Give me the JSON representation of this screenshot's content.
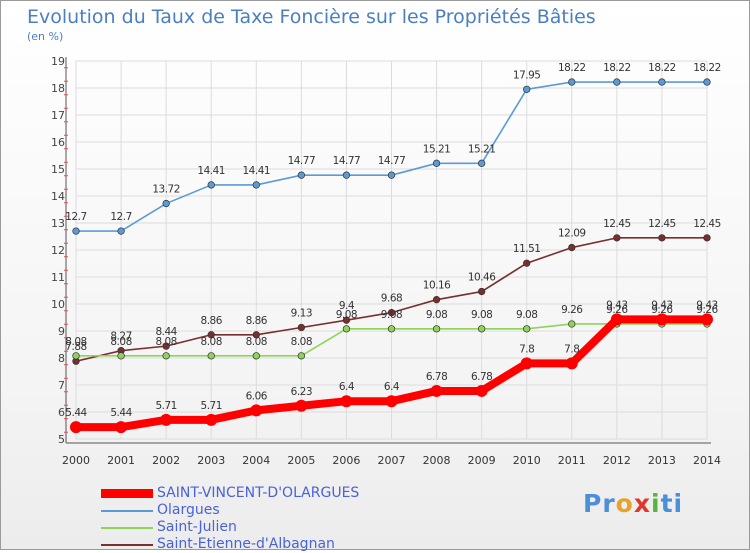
{
  "title": "Evolution du Taux de Taxe Foncière sur les Propriétés Bâties",
  "subtitle": "(en %)",
  "logo": {
    "parts": [
      "Pr",
      "o",
      "x",
      "i",
      "ti"
    ],
    "colors": [
      "#4a8fd8",
      "#e8a22a",
      "#e0362b",
      "#58b43e",
      "#4a8fd8"
    ]
  },
  "chart_data": {
    "type": "line",
    "title": "Evolution du Taux de Taxe Foncière sur les Propriétés Bâties",
    "ylabel": "(en %)",
    "x": [
      "2000",
      "2001",
      "2002",
      "2003",
      "2004",
      "2005",
      "2006",
      "2007",
      "2008",
      "2009",
      "2010",
      "2011",
      "2012",
      "2013",
      "2014"
    ],
    "ylim": [
      5,
      19
    ],
    "yticks": [
      "5",
      "6",
      "7",
      "8",
      "9",
      "10",
      "11",
      "12",
      "13",
      "14",
      "15",
      "16",
      "17",
      "18",
      "19"
    ],
    "grid": true,
    "legend_position": "bottom-left",
    "series": [
      {
        "name": "SAINT-VINCENT-D'OLARGUES",
        "color": "#ff0000",
        "values": [
          5.44,
          5.44,
          5.71,
          5.71,
          6.06,
          6.23,
          6.4,
          6.4,
          6.78,
          6.78,
          7.8,
          7.8,
          9.43,
          9.43,
          9.43
        ],
        "labels": [
          "5.44",
          "5.44",
          "5.71",
          "5.71",
          "6.06",
          "6.23",
          "6.4",
          "6.4",
          "6.78",
          "6.78",
          "7.8",
          "7.8",
          "9.43",
          "9.43",
          "9.43"
        ]
      },
      {
        "name": "Olargues",
        "color": "#5b9bd5",
        "values": [
          12.7,
          12.7,
          13.72,
          14.41,
          14.41,
          14.77,
          14.77,
          14.77,
          15.21,
          15.21,
          17.95,
          18.22,
          18.22,
          18.22,
          18.22
        ],
        "labels": [
          "12.7",
          "12.7",
          "13.72",
          "14.41",
          "14.41",
          "14.77",
          "14.77",
          "14.77",
          "15.21",
          "15.21",
          "17.95",
          "18.22",
          "18.22",
          "18.22",
          "18.22"
        ]
      },
      {
        "name": "Saint-Julien",
        "color": "#8fd45a",
        "values": [
          8.08,
          8.08,
          8.08,
          8.08,
          8.08,
          8.08,
          9.08,
          9.08,
          9.08,
          9.08,
          9.08,
          9.26,
          9.26,
          9.26,
          9.26
        ],
        "labels": [
          "8.08",
          "8.08",
          "8.08",
          "8.08",
          "8.08",
          "8.08",
          "9.08",
          "9.08",
          "9.08",
          "9.08",
          "9.08",
          "9.26",
          "9.26",
          "9.26",
          "9.26"
        ]
      },
      {
        "name": "Saint-Etienne-d'Albagnan",
        "color": "#7a2e2e",
        "values": [
          7.88,
          8.27,
          8.44,
          8.86,
          8.86,
          9.13,
          9.4,
          9.68,
          10.16,
          10.46,
          11.51,
          12.09,
          12.45,
          12.45,
          12.45
        ],
        "labels": [
          "7.88",
          "8.27",
          "8.44",
          "8.86",
          "8.86",
          "9.13",
          "9.4",
          "9.68",
          "10.16",
          "10.46",
          "11.51",
          "12.09",
          "12.45",
          "12.45",
          "12.45"
        ]
      }
    ]
  }
}
